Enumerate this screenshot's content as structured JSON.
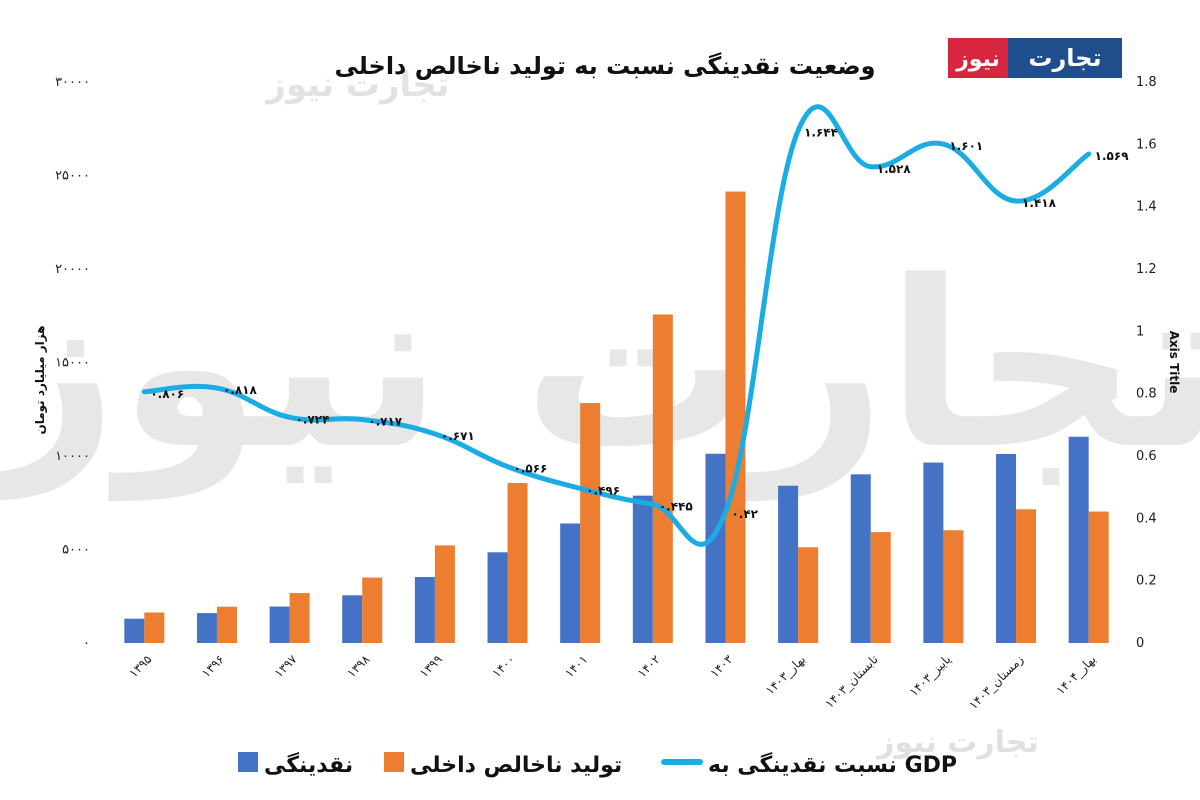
{
  "chart_data": {
    "type": "bar",
    "title": "وضعیت نقدینگی نسبت به تولید ناخالص داخلی",
    "ylabel": "هزار میلیارد تومان",
    "y2label": "Axis Title",
    "ylim": [
      0,
      30000
    ],
    "y2lim": [
      0,
      1.8
    ],
    "yticks": [
      "۰",
      "۵۰۰۰",
      "۱۰۰۰۰",
      "۱۵۰۰۰",
      "۲۰۰۰۰",
      "۲۵۰۰۰",
      "۳۰۰۰۰"
    ],
    "y2ticks": [
      "0",
      "0.2",
      "0.4",
      "0.6",
      "0.8",
      "1",
      "1.2",
      "1.4",
      "1.6",
      "1.8"
    ],
    "categories": [
      "۱۳۹۵",
      "۱۳۹۶",
      "۱۳۹۷",
      "۱۳۹۸",
      "۱۳۹۹",
      "۱۴۰۰",
      "۱۴۰۱",
      "۱۴۰۲",
      "۱۴۰۳",
      "۱۴۰۳_بهار",
      "۱۴۰۳_تابستان",
      "۱۴۰۳_پاییز",
      "۱۴۰۳_زمستان",
      "۱۴۰۴_بهار"
    ],
    "grid": false,
    "legend_position": "bottom",
    "series": [
      {
        "name": "نقدینگی",
        "type": "bar",
        "axis": "left",
        "color": "#4472C4",
        "values": [
          1300,
          1600,
          1950,
          2550,
          3530,
          4850,
          6390,
          7880,
          10120,
          8410,
          9020,
          9650,
          10110,
          11030
        ]
      },
      {
        "name": "تولید ناخالص داخلی",
        "type": "bar",
        "axis": "left",
        "color": "#ED7D31",
        "values": [
          1630,
          1940,
          2670,
          3500,
          5220,
          8560,
          12830,
          17570,
          24140,
          5120,
          5930,
          6030,
          7150,
          7030
        ]
      },
      {
        "name": "نسبت نقدینگی به GDP",
        "type": "line",
        "axis": "right",
        "color": "#1AACE3",
        "values": [
          0.806,
          0.818,
          0.724,
          0.717,
          0.671,
          0.566,
          0.496,
          0.445,
          0.42,
          1.644,
          1.528,
          1.601,
          1.418,
          1.569
        ],
        "labels": [
          "۰.۸۰۶",
          "۰.۸۱۸",
          "۰.۷۲۴",
          "۰.۷۱۷",
          "۰.۶۷۱",
          "۰.۵۶۶",
          "۰.۴۹۶",
          "۰.۴۴۵",
          "۰.۴۲",
          "۱.۶۴۴",
          "۱.۵۲۸",
          "۱.۶۰۱",
          "۱.۴۱۸",
          "۱.۵۶۹"
        ]
      }
    ]
  },
  "legend": {
    "items": [
      "نقدینگی",
      "تولید ناخالص داخلی",
      "نسبت نقدینگی به GDP"
    ]
  },
  "logo": {
    "text_top": "تجارت",
    "text_bottom": "نیوز"
  },
  "watermark": "تجارت نیوز",
  "colors": {
    "bar1": "#4472C4",
    "bar2": "#ED7D31",
    "line": "#1AACE3",
    "logo_red": "#D7263D",
    "logo_blue": "#1E4E8C"
  }
}
